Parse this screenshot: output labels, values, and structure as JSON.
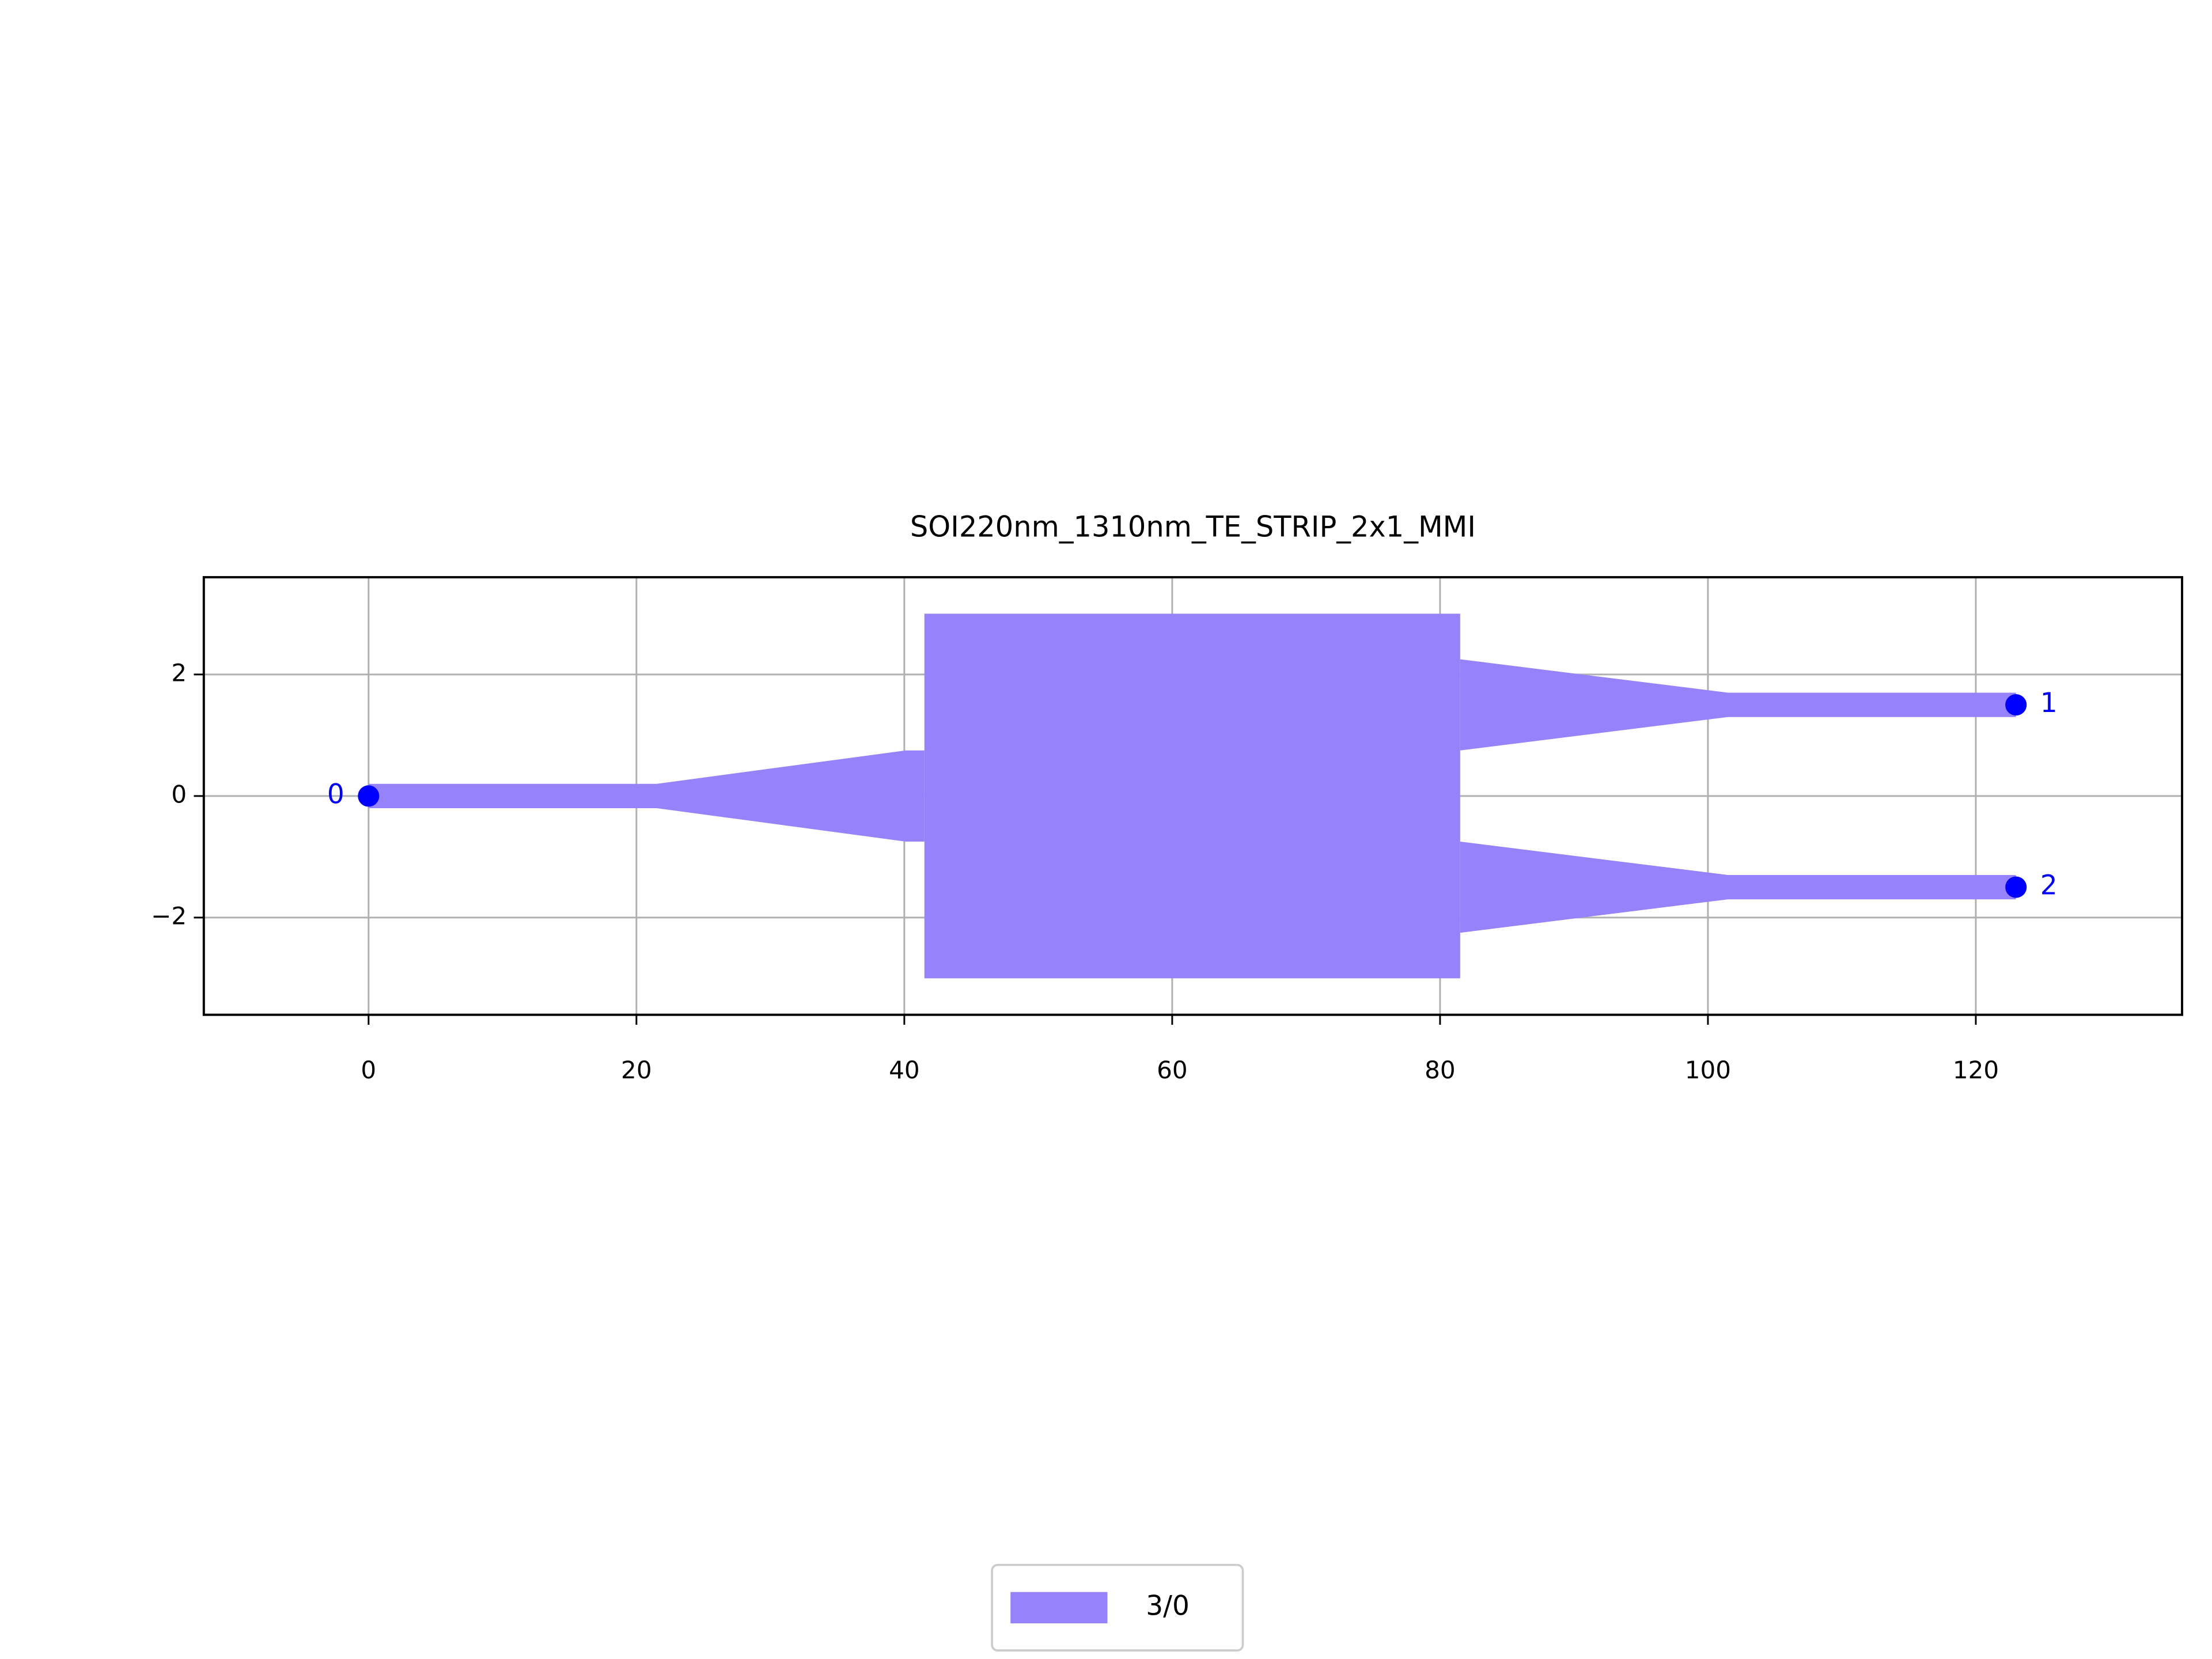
{
  "chart_data": {
    "type": "polygon",
    "title": "SOI220nm_1310nm_TE_STRIP_2x1_MMI",
    "series": [
      {
        "name": "3/0",
        "color": "#9683fc",
        "shapes": [
          {
            "x": [
              0,
              21.5,
              40.1,
              41.5,
              41.5,
              40.1,
              21.5,
              0
            ],
            "y": [
              0.2,
              0.2,
              0.75,
              0.75,
              -0.75,
              -0.75,
              -0.2,
              -0.2
            ]
          },
          {
            "x": [
              41.5,
              81.5,
              81.5,
              41.5
            ],
            "y": [
              3,
              3,
              -3,
              -3
            ]
          },
          {
            "x": [
              81.5,
              101.5,
              123,
              123,
              101.5,
              81.5
            ],
            "y": [
              2.25,
              1.7,
              1.7,
              1.3,
              1.3,
              0.75
            ]
          },
          {
            "x": [
              81.5,
              101.5,
              123,
              123,
              101.5,
              81.5
            ],
            "y": [
              -0.75,
              -1.3,
              -1.3,
              -1.7,
              -1.7,
              -2.25
            ]
          }
        ]
      }
    ],
    "ports": {
      "labels": [
        "0",
        "1",
        "2"
      ],
      "x": [
        0,
        123,
        123
      ],
      "y": [
        0,
        1.5,
        -1.5
      ],
      "color": "#0000ff"
    },
    "xlim": [
      -12.3,
      135.4
    ],
    "ylim": [
      -3.6,
      3.6
    ],
    "xticks": [
      0,
      20,
      40,
      60,
      80,
      100,
      120
    ],
    "yticks": [
      {
        "value": -2,
        "label": "−2"
      },
      0,
      2
    ],
    "grid": true,
    "legend": "bottom"
  }
}
